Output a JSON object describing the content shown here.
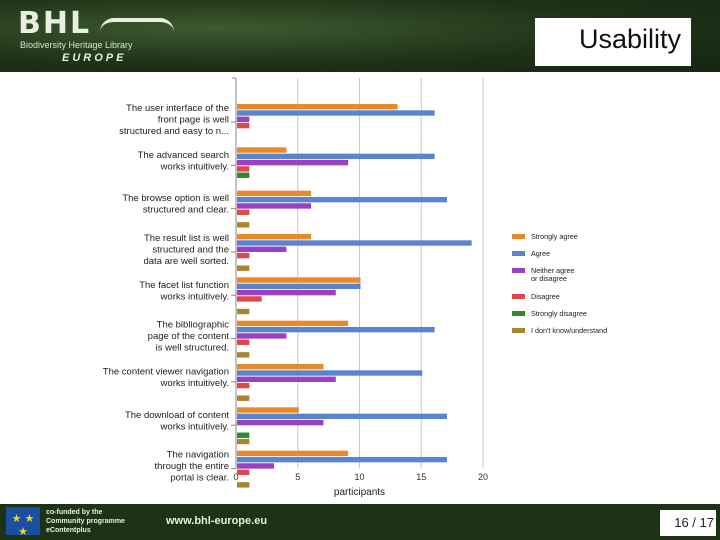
{
  "header": {
    "logo_text": "BHL",
    "logo_subtitle": "Biodiversity Heritage Library",
    "logo_region": "EUROPE",
    "title": "Usability"
  },
  "footer": {
    "funded_lines": [
      "co-funded by the",
      "Community programme",
      "eContentplus"
    ],
    "url": "www.bhl-europe.eu",
    "page_number": "16 / 17",
    "eu_flag_icon": "eu-flag-icon"
  },
  "chart_data": {
    "type": "bar",
    "orientation": "horizontal",
    "xlabel": "participants",
    "xlim": [
      0,
      20
    ],
    "xticks": [
      0,
      5,
      10,
      15,
      20
    ],
    "grid": true,
    "legend_position": "right",
    "categories": [
      [
        "The user interface of the",
        "front page is well",
        "structured and easy to n..."
      ],
      [
        "The advanced search",
        "works intuitively."
      ],
      [
        "The browse option is well",
        "structured and clear."
      ],
      [
        "The result list is well",
        "structured and the",
        "data are well sorted."
      ],
      [
        "The facet list function",
        "works intuitively."
      ],
      [
        "The bibliographic",
        "page of the content",
        "is well structured."
      ],
      [
        "The content viewer navigation",
        "works intuitively."
      ],
      [
        "The download of content",
        "works intuitively."
      ],
      [
        "The navigation",
        "through the entire",
        "portal is clear."
      ]
    ],
    "series": [
      {
        "name": "Strongly agree",
        "color": "#e8892a",
        "values": [
          13,
          4,
          6,
          6,
          10,
          9,
          7,
          5,
          9
        ]
      },
      {
        "name": "Agree",
        "color": "#5b84d0",
        "values": [
          16,
          16,
          17,
          19,
          10,
          16,
          15,
          17,
          17
        ]
      },
      {
        "name": "Neither agree or disagree",
        "color": "#9b40c0",
        "values": [
          1,
          9,
          6,
          4,
          8,
          4,
          8,
          7,
          3
        ]
      },
      {
        "name": "Disagree",
        "color": "#e04848",
        "values": [
          1,
          1,
          1,
          1,
          2,
          1,
          1,
          0,
          1
        ]
      },
      {
        "name": "Strongly disagree",
        "color": "#2e8a2e",
        "values": [
          0,
          1,
          0,
          0,
          0,
          0,
          0,
          1,
          0
        ]
      },
      {
        "name": "I don't know/understand",
        "color": "#a88430",
        "values": [
          0,
          0,
          1,
          1,
          1,
          1,
          1,
          1,
          1
        ]
      }
    ],
    "legend_labels": [
      [
        "Strongly agree"
      ],
      [
        "Agree"
      ],
      [
        "Neither agree",
        "or disagree"
      ],
      [
        "Disagree"
      ],
      [
        "Strongly disagree"
      ],
      [
        "I don't know/understand"
      ]
    ]
  }
}
